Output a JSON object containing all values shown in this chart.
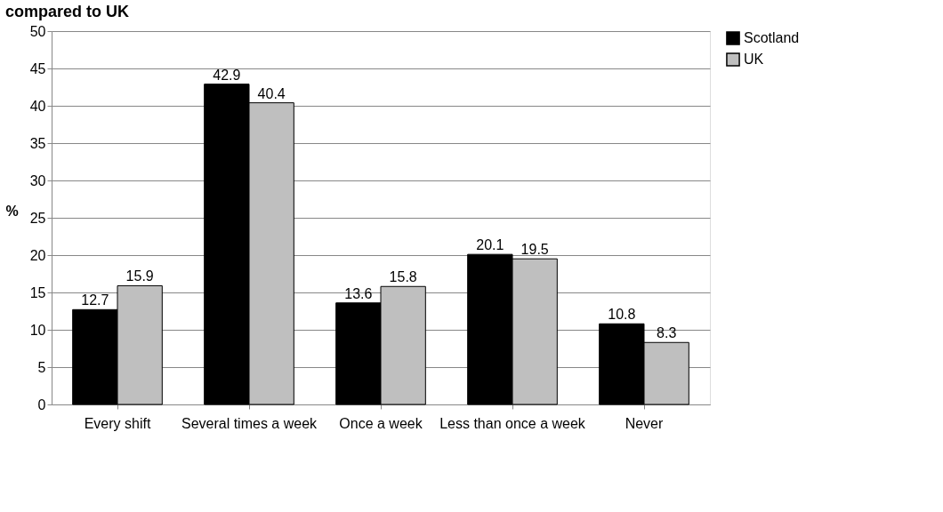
{
  "chart_data": {
    "type": "bar",
    "title": "compared to UK",
    "ylabel": "%",
    "categories": [
      "Every shift",
      "Several times a week",
      "Once a week",
      "Less than once a week",
      "Never"
    ],
    "series": [
      {
        "name": "Scotland",
        "color": "#000000",
        "values": [
          12.7,
          42.9,
          13.6,
          20.1,
          10.8
        ]
      },
      {
        "name": "UK",
        "color": "#bfbfbf",
        "values": [
          15.9,
          40.4,
          15.8,
          19.5,
          8.3
        ]
      }
    ],
    "ylim": [
      0,
      50
    ],
    "yticks": [
      0,
      5,
      10,
      15,
      20,
      25,
      30,
      35,
      40,
      45,
      50
    ],
    "grid": "y",
    "legend": "right",
    "data_labels": true
  }
}
